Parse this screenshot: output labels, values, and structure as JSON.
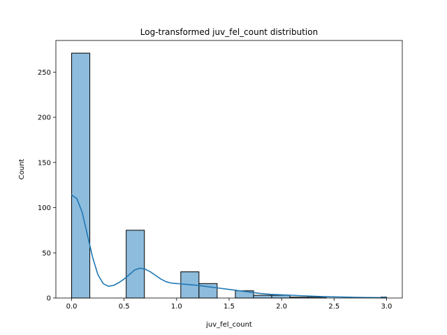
{
  "chart_data": {
    "type": "bar",
    "title": "Log-transformed juv_fel_count distribution",
    "xlabel": "juv_fel_count",
    "ylabel": "Count",
    "xlim": [
      -0.15,
      3.15
    ],
    "ylim": [
      0,
      285
    ],
    "xticks": [
      0.0,
      0.5,
      1.0,
      1.5,
      2.0,
      2.5,
      3.0
    ],
    "xtick_labels": [
      "0.0",
      "0.5",
      "1.0",
      "1.5",
      "2.0",
      "2.5",
      "3.0"
    ],
    "yticks": [
      0,
      50,
      100,
      150,
      200,
      250
    ],
    "ytick_labels": [
      "0",
      "50",
      "100",
      "150",
      "200",
      "250"
    ],
    "grid": false,
    "bin_edges": [
      0.0,
      0.1733,
      0.3466,
      0.5199,
      0.6931,
      0.8664,
      1.0397,
      1.213,
      1.3863,
      1.5596,
      1.7329,
      1.9062,
      2.0794,
      2.2527,
      2.426,
      2.5993,
      2.7726,
      2.9459,
      3.0
    ],
    "values": [
      271,
      0,
      0,
      75,
      0,
      0,
      29,
      16,
      0,
      8,
      3,
      3,
      1,
      1,
      0,
      0,
      0,
      1
    ],
    "bar_color": "#8ebcdc",
    "bar_edge_color": "#000000",
    "kde": {
      "color": "#1f77b4",
      "x": [
        0.0,
        0.05,
        0.1,
        0.15,
        0.2,
        0.25,
        0.3,
        0.35,
        0.4,
        0.45,
        0.5,
        0.55,
        0.6,
        0.65,
        0.7,
        0.75,
        0.8,
        0.85,
        0.9,
        0.95,
        1.0,
        1.1,
        1.2,
        1.3,
        1.4,
        1.5,
        1.6,
        1.7,
        1.8,
        1.9,
        2.0,
        2.2,
        2.4,
        2.6,
        2.8,
        3.0
      ],
      "y": [
        114,
        110,
        95,
        70,
        45,
        26,
        16,
        13,
        14,
        17,
        21,
        26,
        31,
        33,
        32,
        29,
        25,
        21,
        18,
        16.5,
        16,
        15,
        14,
        12.5,
        11,
        9.5,
        8,
        6.5,
        5,
        4,
        3.5,
        2.5,
        1.5,
        1,
        0.5,
        0.3
      ]
    }
  }
}
